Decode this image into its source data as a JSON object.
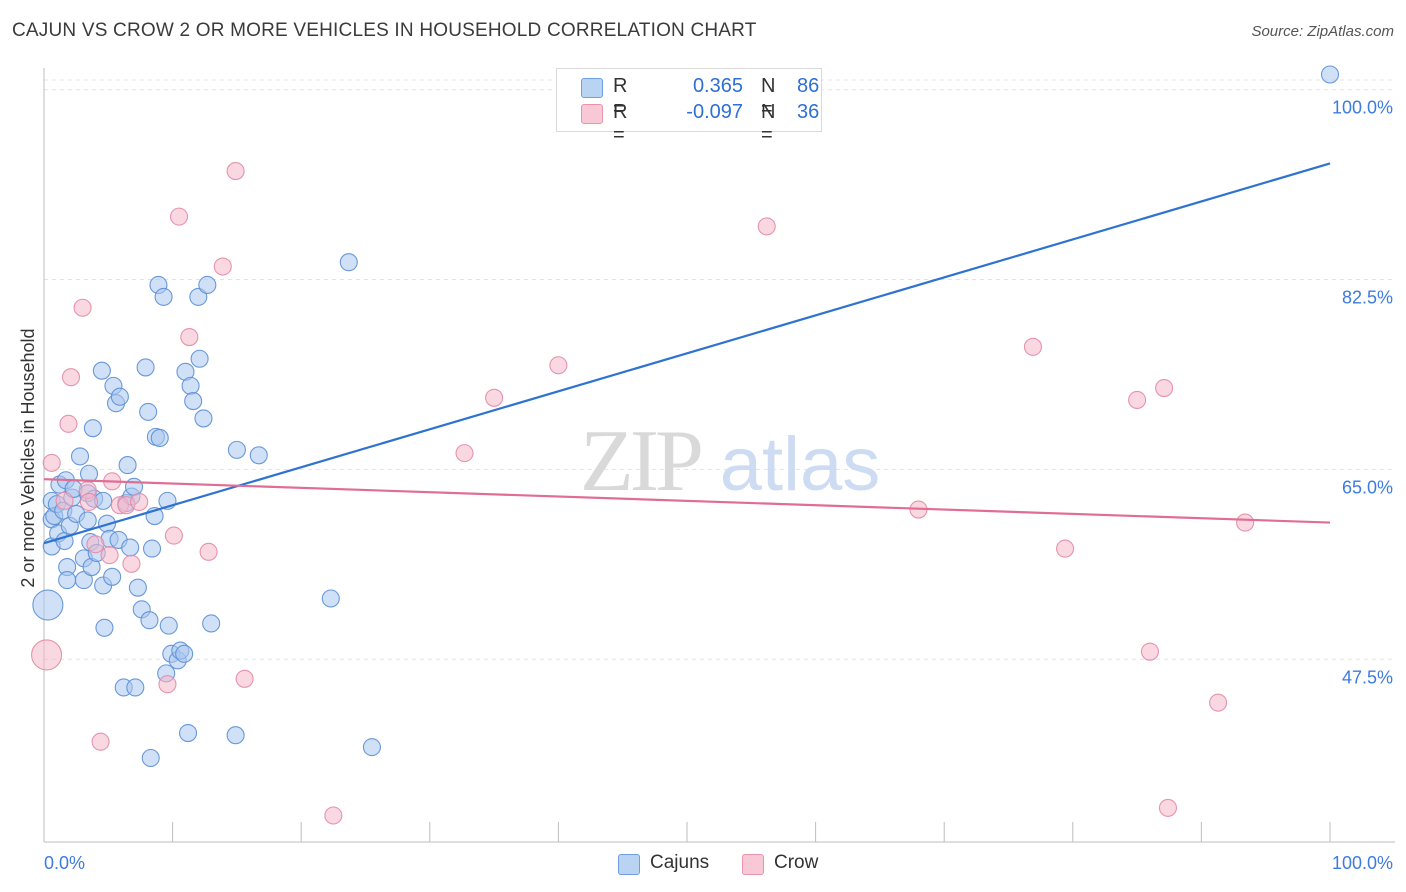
{
  "header": {
    "title": "CAJUN VS CROW 2 OR MORE VEHICLES IN HOUSEHOLD CORRELATION CHART",
    "source": "Source: ZipAtlas.com"
  },
  "legend_top": {
    "rows": [
      {
        "r_label": "R =",
        "r_value": "0.365",
        "n_label": "N =",
        "n_value": "86"
      },
      {
        "r_label": "R =",
        "r_value": "-0.097",
        "n_label": "N =",
        "n_value": "36"
      }
    ]
  },
  "legend_bottom": {
    "items": [
      "Cajuns",
      "Crow"
    ]
  },
  "watermark": {
    "zip": "ZIP",
    "atlas": "atlas"
  },
  "colors": {
    "cajuns_fill": "#a9c7ee",
    "cajuns_stroke": "#5b8fd6",
    "cajuns_line": "#2f73d0",
    "crow_fill": "#f5b8cb",
    "crow_stroke": "#e38aa6",
    "crow_line": "#e06d93",
    "axis_text": "#3d7be0",
    "grid": "#e3e3e3"
  },
  "chart_data": {
    "type": "scatter",
    "title": "CAJUN VS CROW 2 OR MORE VEHICLES IN HOUSEHOLD CORRELATION CHART",
    "xlabel": "",
    "ylabel": "2 or more Vehicles in Household",
    "xlim": [
      0,
      100
    ],
    "ylim": [
      32.5,
      102
    ],
    "x_tick_labels": [
      "0.0%",
      "100.0%"
    ],
    "y_ticks": [
      47.5,
      65.0,
      82.5,
      100.0
    ],
    "y_tick_labels": [
      "47.5%",
      "65.0%",
      "82.5%",
      "100.0%"
    ],
    "grid": true,
    "legend_position": "top-center",
    "series": [
      {
        "name": "Cajuns",
        "R": 0.365,
        "N": 86,
        "trend": {
          "x": [
            0,
            100
          ],
          "y": [
            58.2,
            93.2
          ]
        },
        "points": [
          [
            0.3,
            52.5,
            "large"
          ],
          [
            0.6,
            62.1
          ],
          [
            0.6,
            60.4
          ],
          [
            0.6,
            57.9
          ],
          [
            0.8,
            60.7
          ],
          [
            1.0,
            61.8
          ],
          [
            1.1,
            59.1
          ],
          [
            1.2,
            63.6
          ],
          [
            1.5,
            61.2
          ],
          [
            1.6,
            58.4
          ],
          [
            1.7,
            64.0
          ],
          [
            1.8,
            56.0
          ],
          [
            1.8,
            54.8
          ],
          [
            2.0,
            59.8
          ],
          [
            2.2,
            62.4
          ],
          [
            2.3,
            63.2
          ],
          [
            2.5,
            60.9
          ],
          [
            2.8,
            66.2
          ],
          [
            3.1,
            54.8
          ],
          [
            3.1,
            56.8
          ],
          [
            3.4,
            60.3
          ],
          [
            3.4,
            62.8
          ],
          [
            3.5,
            64.6
          ],
          [
            3.6,
            58.3
          ],
          [
            3.7,
            56.0
          ],
          [
            3.8,
            68.8
          ],
          [
            3.9,
            62.3
          ],
          [
            4.1,
            57.3
          ],
          [
            4.5,
            74.1
          ],
          [
            4.6,
            54.3
          ],
          [
            4.6,
            62.1
          ],
          [
            4.7,
            50.4
          ],
          [
            4.9,
            60.0
          ],
          [
            5.1,
            58.6
          ],
          [
            5.3,
            55.1
          ],
          [
            5.4,
            72.7
          ],
          [
            5.6,
            71.1
          ],
          [
            5.8,
            58.5
          ],
          [
            5.9,
            71.7
          ],
          [
            6.2,
            44.9
          ],
          [
            6.4,
            61.9
          ],
          [
            6.5,
            65.4
          ],
          [
            6.7,
            57.8
          ],
          [
            6.8,
            62.5
          ],
          [
            7.0,
            63.4
          ],
          [
            7.1,
            44.9
          ],
          [
            7.3,
            54.1
          ],
          [
            7.6,
            52.1
          ],
          [
            7.9,
            74.4
          ],
          [
            8.1,
            70.3
          ],
          [
            8.2,
            51.1
          ],
          [
            8.3,
            38.4
          ],
          [
            8.4,
            57.7
          ],
          [
            8.6,
            60.7
          ],
          [
            8.7,
            68.0
          ],
          [
            8.9,
            82.0
          ],
          [
            9.0,
            67.9
          ],
          [
            9.3,
            80.9
          ],
          [
            9.5,
            46.2
          ],
          [
            9.6,
            62.1
          ],
          [
            9.7,
            50.6
          ],
          [
            9.9,
            48.0
          ],
          [
            10.4,
            47.4
          ],
          [
            10.6,
            48.3
          ],
          [
            10.9,
            48.0
          ],
          [
            11.0,
            74.0
          ],
          [
            11.2,
            40.7
          ],
          [
            11.4,
            72.7
          ],
          [
            11.6,
            71.3
          ],
          [
            12.0,
            80.9
          ],
          [
            12.1,
            75.2
          ],
          [
            12.4,
            69.7
          ],
          [
            12.7,
            82.0
          ],
          [
            13.0,
            50.8
          ],
          [
            14.9,
            40.5
          ],
          [
            15.0,
            66.8
          ],
          [
            16.7,
            66.3
          ],
          [
            22.3,
            53.1
          ],
          [
            23.7,
            84.1
          ],
          [
            25.5,
            39.4
          ],
          [
            100.0,
            101.4
          ]
        ]
      },
      {
        "name": "Crow",
        "R": -0.097,
        "N": 36,
        "trend": {
          "x": [
            0,
            100
          ],
          "y": [
            64.1,
            60.1
          ]
        },
        "points": [
          [
            0.2,
            47.9,
            "large"
          ],
          [
            0.6,
            65.6
          ],
          [
            1.6,
            62.1
          ],
          [
            1.9,
            69.2
          ],
          [
            2.1,
            73.5
          ],
          [
            3.0,
            79.9
          ],
          [
            3.4,
            63.1
          ],
          [
            3.5,
            62.0
          ],
          [
            4.0,
            58.1
          ],
          [
            4.4,
            39.9
          ],
          [
            5.1,
            57.1
          ],
          [
            5.3,
            63.9
          ],
          [
            5.9,
            61.7
          ],
          [
            6.4,
            61.7
          ],
          [
            6.8,
            56.3
          ],
          [
            7.4,
            62.0
          ],
          [
            9.6,
            45.2
          ],
          [
            10.1,
            58.9
          ],
          [
            10.5,
            88.3
          ],
          [
            11.3,
            77.2
          ],
          [
            12.8,
            57.4
          ],
          [
            13.9,
            83.7
          ],
          [
            14.9,
            92.5
          ],
          [
            15.6,
            45.7
          ],
          [
            22.5,
            33.1
          ],
          [
            32.7,
            66.5
          ],
          [
            35.0,
            71.6
          ],
          [
            40.0,
            74.6
          ],
          [
            56.2,
            87.4
          ],
          [
            68.0,
            61.3
          ],
          [
            76.9,
            76.3
          ],
          [
            79.4,
            57.7
          ],
          [
            85.0,
            71.4
          ],
          [
            86.0,
            48.2
          ],
          [
            87.1,
            72.5
          ],
          [
            87.4,
            33.8
          ],
          [
            91.3,
            43.5
          ],
          [
            93.4,
            60.1
          ]
        ]
      }
    ]
  }
}
